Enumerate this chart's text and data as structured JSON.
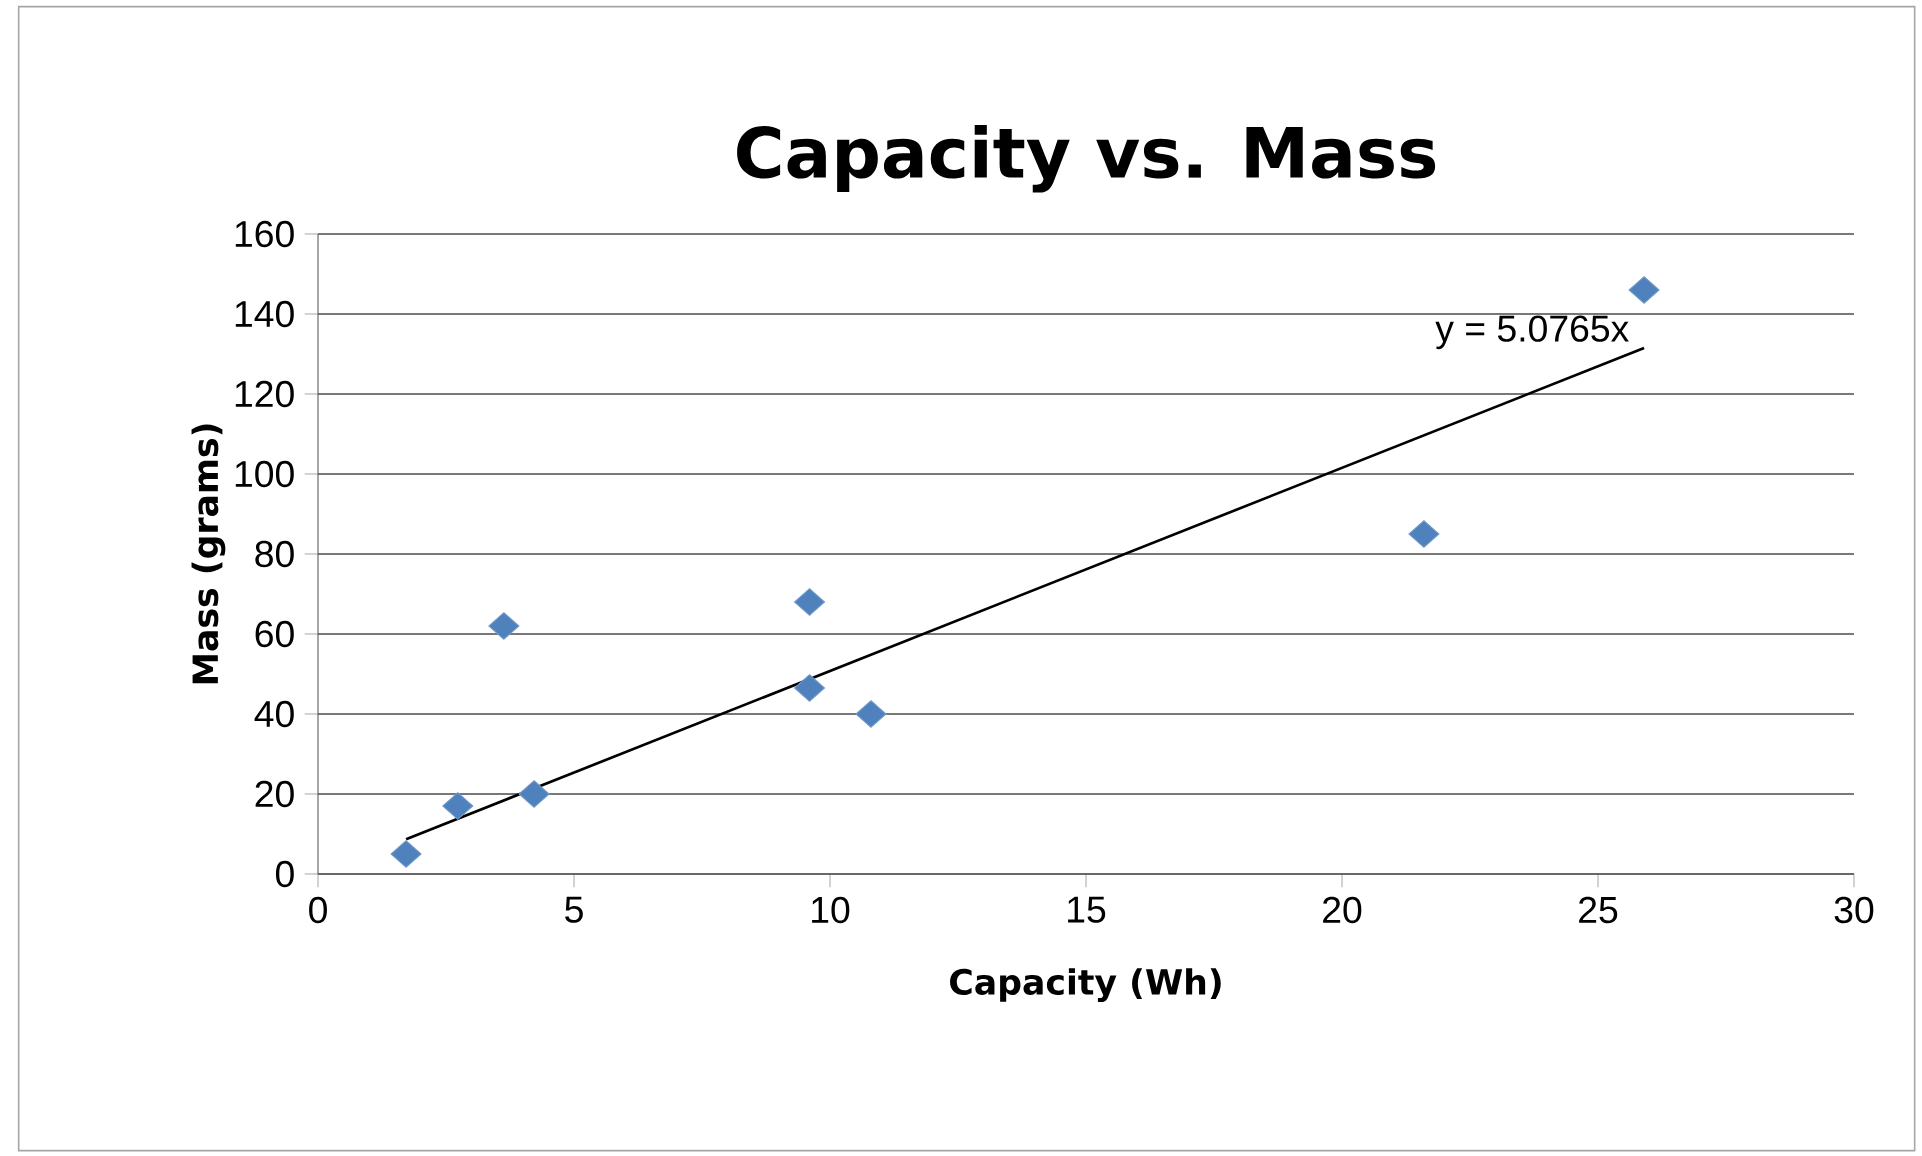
{
  "chart_data": {
    "type": "scatter",
    "title": "Capacity vs. Mass",
    "xlabel": "Capacity (Wh)",
    "ylabel": "Mass (grams)",
    "series": [
      {
        "color": "#4f81bd",
        "marker": "diamond",
        "x": [
          1.72,
          2.73,
          3.63,
          4.22,
          9.6,
          9.6,
          10.8,
          21.6,
          25.9
        ],
        "values": [
          5,
          17,
          62,
          20,
          68,
          46.5,
          40,
          85,
          146
        ]
      },
      {
        "type": "line",
        "color": "#000000",
        "x": [
          1.72,
          25.9
        ],
        "values": [
          8.7,
          131.5
        ]
      }
    ],
    "annotations": [
      "y = 5.0765x"
    ],
    "xlim": [
      0,
      30
    ],
    "xticks": [
      0,
      5,
      10,
      15,
      20,
      25,
      30
    ],
    "ylim": [
      0,
      160
    ],
    "yticks": [
      0,
      20,
      40,
      60,
      80,
      100,
      120,
      140,
      160
    ],
    "grid": "y"
  }
}
